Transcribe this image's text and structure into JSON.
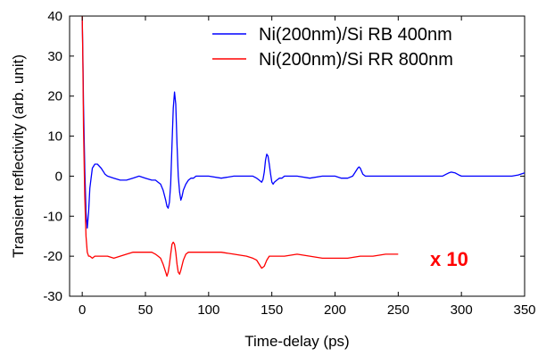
{
  "chart_data": {
    "type": "line",
    "xlabel": "Time-delay (ps)",
    "ylabel": "Transient reflectivity (arb. unit)",
    "xlim": [
      -10,
      350
    ],
    "ylim": [
      -30,
      40
    ],
    "xticks": [
      0,
      50,
      100,
      150,
      200,
      250,
      300,
      350
    ],
    "yticks": [
      -30,
      -20,
      -10,
      0,
      10,
      20,
      30,
      40
    ],
    "xtick_labels": [
      "0",
      "50",
      "100",
      "150",
      "200",
      "250",
      "300",
      "350"
    ],
    "ytick_labels": [
      "-30",
      "-20",
      "-10",
      "0",
      "10",
      "20",
      "30",
      "40"
    ],
    "grid": false,
    "legend_position": "top-right",
    "annotations": [
      {
        "text": "x 10",
        "x": 275,
        "y": -20,
        "color": "#ff0000"
      }
    ],
    "series": [
      {
        "name": "Ni(200nm)/Si RB 400nm",
        "color": "#0000ff",
        "x": [
          0,
          0.5,
          1,
          2,
          3,
          4,
          5,
          6,
          8,
          10,
          12,
          15,
          18,
          20,
          25,
          30,
          35,
          40,
          45,
          50,
          55,
          58,
          60,
          62,
          64,
          66,
          67,
          68,
          69,
          70,
          71,
          72,
          73,
          74,
          75,
          76,
          77,
          78,
          79,
          80,
          82,
          84,
          86,
          88,
          90,
          95,
          100,
          110,
          120,
          130,
          135,
          138,
          140,
          142,
          143,
          144,
          145,
          146,
          147,
          148,
          149,
          150,
          151,
          152,
          154,
          156,
          158,
          160,
          170,
          180,
          190,
          200,
          205,
          210,
          214,
          216,
          218,
          219,
          220,
          221,
          222,
          224,
          226,
          230,
          240,
          250,
          260,
          270,
          280,
          285,
          288,
          290,
          292,
          295,
          298,
          300,
          310,
          320,
          330,
          340,
          345,
          350
        ],
        "y": [
          39,
          30,
          18,
          2,
          -9,
          -13,
          -9,
          -3,
          2,
          3,
          3,
          2,
          0.5,
          0,
          -0.5,
          -1,
          -1,
          -0.5,
          0,
          -0.5,
          -1,
          -1,
          -1.5,
          -2,
          -3.5,
          -6,
          -7.5,
          -8,
          -6.5,
          -2,
          8,
          17,
          21,
          18,
          8,
          0,
          -4,
          -6,
          -5,
          -3.5,
          -2,
          -1,
          -0.5,
          -0.5,
          0,
          0,
          0,
          -0.5,
          0,
          0,
          0,
          -0.5,
          -1,
          -1.5,
          -0.8,
          1,
          4,
          5.5,
          5,
          3,
          0.5,
          -1.5,
          -2,
          -1.5,
          -1,
          -0.5,
          -0.5,
          0,
          0,
          -0.5,
          0,
          0,
          -0.5,
          -0.5,
          0,
          1,
          2,
          2.3,
          2,
          1.2,
          0.5,
          0,
          0,
          0,
          0,
          0,
          0,
          0,
          0,
          0,
          0.5,
          0.8,
          1,
          0.8,
          0.3,
          0,
          0,
          0,
          0,
          0,
          0.3,
          0.8
        ]
      },
      {
        "name": "Ni(200nm)/Si RR 800nm",
        "color": "#ff0000",
        "x": [
          0,
          0.5,
          1,
          2,
          3,
          4,
          5,
          6,
          8,
          10,
          15,
          20,
          25,
          30,
          35,
          40,
          45,
          50,
          55,
          58,
          60,
          62,
          64,
          66,
          67,
          68,
          69,
          70,
          71,
          72,
          73,
          74,
          75,
          76,
          77,
          78,
          80,
          82,
          84,
          86,
          88,
          90,
          95,
          100,
          110,
          120,
          130,
          135,
          138,
          140,
          142,
          144,
          146,
          148,
          150,
          152,
          155,
          160,
          170,
          180,
          190,
          200,
          210,
          220,
          230,
          240,
          250
        ],
        "y": [
          40,
          28,
          12,
          -5,
          -15,
          -19,
          -20,
          -20,
          -20.5,
          -20,
          -20,
          -20,
          -20.5,
          -20,
          -19.5,
          -19,
          -19,
          -19,
          -19,
          -19.5,
          -20,
          -20.5,
          -22,
          -24,
          -25,
          -24,
          -22,
          -19.5,
          -17,
          -16.5,
          -17,
          -19,
          -22,
          -24,
          -24.5,
          -23.5,
          -21,
          -19.5,
          -19,
          -19,
          -19,
          -19,
          -19,
          -19,
          -19,
          -19.5,
          -20,
          -20.5,
          -21,
          -22,
          -23,
          -22.5,
          -21,
          -20,
          -20,
          -20,
          -20,
          -20,
          -19.5,
          -20,
          -20.5,
          -20.5,
          -20.5,
          -20,
          -20,
          -19.5,
          -19.5
        ]
      }
    ]
  }
}
